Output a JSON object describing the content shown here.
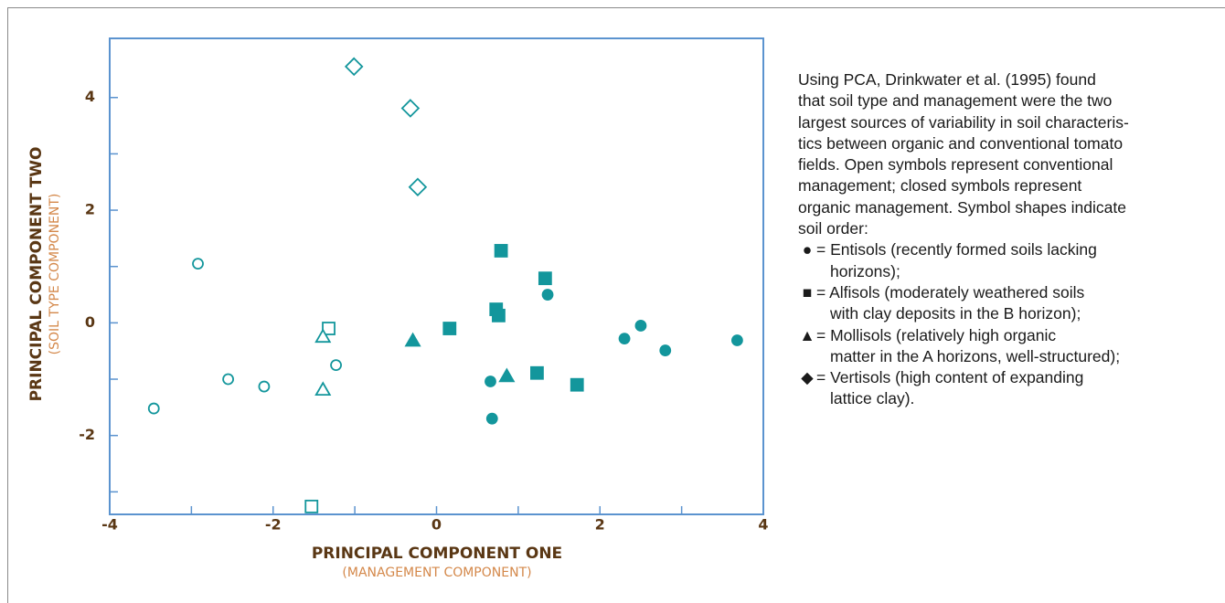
{
  "chart_data": {
    "type": "scatter",
    "x_label": "PRINCIPAL COMPONENT ONE",
    "x_sublabel": "(MANAGEMENT COMPONENT)",
    "y_label": "PRINCIPAL COMPONENT TWO",
    "y_sublabel": "(SOIL TYPE COMPONENT)",
    "xlim": [
      -4,
      4
    ],
    "ylim": [
      -3.4,
      5.05
    ],
    "xticks": [
      -4,
      -2,
      0,
      2,
      4
    ],
    "yticks": [
      -2,
      0,
      2,
      4
    ],
    "xminor": [
      -3,
      -1,
      1,
      3
    ],
    "yminor": [
      -3,
      -1,
      1,
      3
    ],
    "color": "#13969c",
    "axis_color": "#5b93cf",
    "series": [
      {
        "marker": "circle",
        "filled": false,
        "x": [
          -2.92,
          -2.55,
          -2.11,
          -3.46,
          -1.23
        ],
        "y": [
          1.05,
          -1.0,
          -1.13,
          -1.52,
          -0.75
        ]
      },
      {
        "marker": "circle",
        "filled": true,
        "x": [
          1.36,
          2.5,
          2.3,
          2.8,
          3.68,
          0.66,
          0.68
        ],
        "y": [
          0.5,
          -0.05,
          -0.28,
          -0.49,
          -0.31,
          -1.04,
          -1.7
        ]
      },
      {
        "marker": "square",
        "filled": false,
        "x": [
          -1.32,
          -1.53
        ],
        "y": [
          -0.1,
          -3.26
        ]
      },
      {
        "marker": "square",
        "filled": true,
        "x": [
          0.79,
          1.33,
          0.16,
          0.73,
          0.76,
          1.23,
          1.72
        ],
        "y": [
          1.28,
          0.79,
          -0.1,
          0.24,
          0.13,
          -0.89,
          -1.1
        ]
      },
      {
        "marker": "triangle",
        "filled": false,
        "x": [
          -1.39,
          -1.39
        ],
        "y": [
          -0.24,
          -1.18
        ]
      },
      {
        "marker": "triangle",
        "filled": true,
        "x": [
          -0.29,
          0.86
        ],
        "y": [
          -0.31,
          -0.94
        ]
      },
      {
        "marker": "diamond",
        "filled": false,
        "x": [
          -1.01,
          -0.32,
          -0.23
        ],
        "y": [
          4.55,
          3.81,
          2.41
        ]
      }
    ]
  },
  "caption": {
    "lines": [
      "Using PCA, Drinkwater et al. (1995) found",
      "that soil type and management were the two",
      "largest sources of variability in soil characteris-",
      "tics between organic and conventional tomato",
      "fields. Open symbols represent conventional",
      "management; closed symbols represent",
      "organic management. Symbol shapes indicate",
      "soil order:"
    ],
    "items": [
      {
        "symbol": "●",
        "lines": [
          "= Entisols (recently formed soils lacking",
          "horizons);"
        ]
      },
      {
        "symbol": "■",
        "lines": [
          "= Alfisols (moderately weathered soils",
          "with clay deposits in the B horizon);"
        ]
      },
      {
        "symbol": "▲",
        "lines": [
          "= Mollisols (relatively high organic",
          "matter in the A horizons, well-structured);"
        ]
      },
      {
        "symbol": "◆",
        "lines": [
          "= Vertisols (high content of expanding",
          "lattice clay)."
        ]
      }
    ]
  }
}
